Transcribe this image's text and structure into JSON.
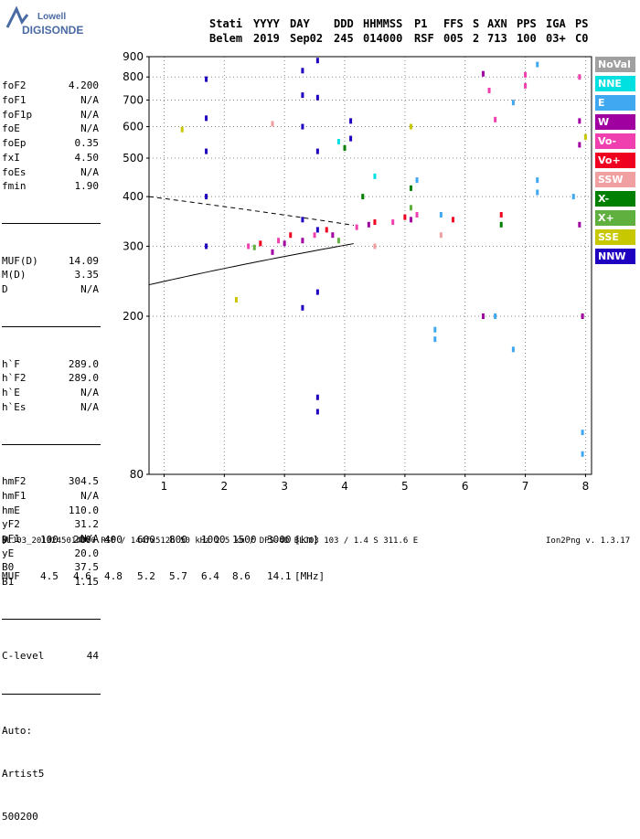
{
  "logo": {
    "brand": "Lowell",
    "name": "DIGISONDE"
  },
  "header": {
    "labels": [
      "Stati",
      "YYYY",
      "DAY",
      "DDD",
      "HHMMSS",
      "P1",
      "FFS",
      "S",
      "AXN",
      "PPS",
      "IGA",
      "PS"
    ],
    "values": [
      "Belem",
      "2019",
      "Sep02",
      "245",
      "014000",
      "RSF",
      "005",
      "2",
      "713",
      "100",
      "03+",
      "C0"
    ]
  },
  "params": {
    "group1": [
      {
        "name": "foF2",
        "value": "4.200"
      },
      {
        "name": "foF1",
        "value": "N/A"
      },
      {
        "name": "foF1p",
        "value": "N/A"
      },
      {
        "name": "foE",
        "value": "N/A"
      },
      {
        "name": "foEp",
        "value": "0.35"
      },
      {
        "name": "fxI",
        "value": "4.50"
      },
      {
        "name": "foEs",
        "value": "N/A"
      },
      {
        "name": "fmin",
        "value": "1.90"
      }
    ],
    "group2": [
      {
        "name": "MUF(D)",
        "value": "14.09"
      },
      {
        "name": "M(D)",
        "value": "3.35"
      },
      {
        "name": "D",
        "value": "N/A"
      }
    ],
    "group3": [
      {
        "name": "h`F",
        "value": "289.0"
      },
      {
        "name": "h`F2",
        "value": "289.0"
      },
      {
        "name": "h`E",
        "value": "N/A"
      },
      {
        "name": "h`Es",
        "value": "N/A"
      }
    ],
    "group4": [
      {
        "name": "hmF2",
        "value": "304.5"
      },
      {
        "name": "hmF1",
        "value": "N/A"
      },
      {
        "name": "hmE",
        "value": "110.0"
      },
      {
        "name": "yF2",
        "value": "31.2"
      },
      {
        "name": "yF1",
        "value": "N/A"
      },
      {
        "name": "yE",
        "value": "20.0"
      },
      {
        "name": "B0",
        "value": "37.5"
      },
      {
        "name": "B1",
        "value": "1.15"
      }
    ],
    "clevel": {
      "name": "C-level",
      "value": "44"
    },
    "auto": [
      "Auto:",
      "Artist5",
      "500200"
    ]
  },
  "legend": [
    {
      "label": "NoVal",
      "color": "#a0a0a0"
    },
    {
      "label": "NNE",
      "color": "#00e0e0"
    },
    {
      "label": "E",
      "color": "#40a8f0"
    },
    {
      "label": "W",
      "color": "#a000a0"
    },
    {
      "label": "Vo-",
      "color": "#f040b0"
    },
    {
      "label": "Vo+",
      "color": "#f00020"
    },
    {
      "label": "SSW",
      "color": "#f0a0a0"
    },
    {
      "label": "X-",
      "color": "#008000"
    },
    {
      "label": "X+",
      "color": "#60b040"
    },
    {
      "label": "SSE",
      "color": "#c8c800"
    },
    {
      "label": "NNW",
      "color": "#2000c0"
    }
  ],
  "chart_data": {
    "type": "scatter",
    "title": "",
    "xlabel": "",
    "ylabel": "",
    "xlim": [
      0.75,
      8.1
    ],
    "ylim": [
      80,
      900
    ],
    "xticks": [
      1,
      2,
      3,
      4,
      5,
      6,
      7,
      8
    ],
    "yticks": [
      80,
      200,
      300,
      400,
      500,
      600,
      700,
      800,
      900
    ],
    "grid": true,
    "series": [
      {
        "name": "NNW",
        "color": "#2000c0",
        "points": [
          [
            1.7,
            300
          ],
          [
            1.7,
            400
          ],
          [
            1.7,
            520
          ],
          [
            1.7,
            630
          ],
          [
            1.7,
            790
          ],
          [
            3.3,
            210
          ],
          [
            3.3,
            350
          ],
          [
            3.3,
            600
          ],
          [
            3.3,
            720
          ],
          [
            3.3,
            830
          ],
          [
            3.55,
            230
          ],
          [
            3.55,
            330
          ],
          [
            3.55,
            520
          ],
          [
            3.55,
            710
          ],
          [
            3.55,
            880
          ],
          [
            4.1,
            560
          ],
          [
            4.1,
            620
          ],
          [
            3.55,
            125
          ],
          [
            3.55,
            115
          ]
        ]
      },
      {
        "name": "E",
        "color": "#40a8f0",
        "points": [
          [
            5.5,
            185
          ],
          [
            5.5,
            175
          ],
          [
            5.2,
            440
          ],
          [
            5.6,
            360
          ],
          [
            6.5,
            200
          ],
          [
            6.8,
            165
          ],
          [
            6.8,
            690
          ],
          [
            7.2,
            860
          ],
          [
            7.2,
            410
          ],
          [
            7.2,
            440
          ],
          [
            7.8,
            400
          ],
          [
            7.95,
            102
          ],
          [
            7.95,
            90
          ]
        ]
      },
      {
        "name": "W",
        "color": "#a000a0",
        "points": [
          [
            2.8,
            290
          ],
          [
            3.0,
            305
          ],
          [
            3.3,
            310
          ],
          [
            3.8,
            320
          ],
          [
            4.4,
            340
          ],
          [
            5.1,
            350
          ],
          [
            6.3,
            200
          ],
          [
            6.3,
            815
          ],
          [
            7.9,
            620
          ],
          [
            7.9,
            540
          ],
          [
            7.9,
            340
          ],
          [
            7.95,
            200
          ]
        ]
      },
      {
        "name": "Vo-",
        "color": "#f040b0",
        "points": [
          [
            2.4,
            300
          ],
          [
            2.9,
            310
          ],
          [
            3.5,
            320
          ],
          [
            4.2,
            335
          ],
          [
            4.8,
            345
          ],
          [
            5.2,
            360
          ],
          [
            6.4,
            740
          ],
          [
            6.5,
            625
          ],
          [
            7.0,
            810
          ],
          [
            7.0,
            760
          ],
          [
            7.9,
            800
          ]
        ]
      },
      {
        "name": "Vo+",
        "color": "#f00020",
        "points": [
          [
            2.6,
            305
          ],
          [
            3.1,
            320
          ],
          [
            3.7,
            330
          ],
          [
            4.5,
            345
          ],
          [
            5.0,
            355
          ],
          [
            5.8,
            350
          ],
          [
            6.6,
            360
          ]
        ]
      },
      {
        "name": "X-",
        "color": "#008000",
        "points": [
          [
            4.0,
            530
          ],
          [
            4.3,
            400
          ],
          [
            5.1,
            420
          ],
          [
            6.6,
            340
          ]
        ]
      },
      {
        "name": "X+",
        "color": "#60b040",
        "points": [
          [
            2.5,
            298
          ],
          [
            3.9,
            310
          ],
          [
            5.1,
            375
          ]
        ]
      },
      {
        "name": "SSE",
        "color": "#c8c800",
        "points": [
          [
            1.3,
            590
          ],
          [
            2.2,
            220
          ],
          [
            5.1,
            600
          ],
          [
            8.0,
            565
          ]
        ]
      },
      {
        "name": "SSW",
        "color": "#f0a0a0",
        "points": [
          [
            2.8,
            610
          ],
          [
            4.5,
            300
          ],
          [
            5.6,
            320
          ]
        ]
      },
      {
        "name": "NNE",
        "color": "#00e0e0",
        "points": [
          [
            3.9,
            550
          ],
          [
            4.5,
            450
          ]
        ]
      }
    ]
  },
  "bottom": {
    "row1_label": "D",
    "distances": [
      "100",
      "200",
      "400",
      "600",
      "800",
      "1000",
      "1500",
      "3000",
      "[km]"
    ],
    "row2_label": "MUF",
    "mufs": [
      "4.5",
      "4.6",
      "4.8",
      "5.2",
      "5.7",
      "6.4",
      "8.6",
      "14.1",
      "[MHz]"
    ]
  },
  "footer": {
    "left": "BLJ03_2019245014000.RSF / 144fx512h 50 kHz 2.5 km / DPS-4D BLJ03 103 / 1.4 S 311.6 E",
    "right": "Ion2Png v. 1.3.17"
  }
}
